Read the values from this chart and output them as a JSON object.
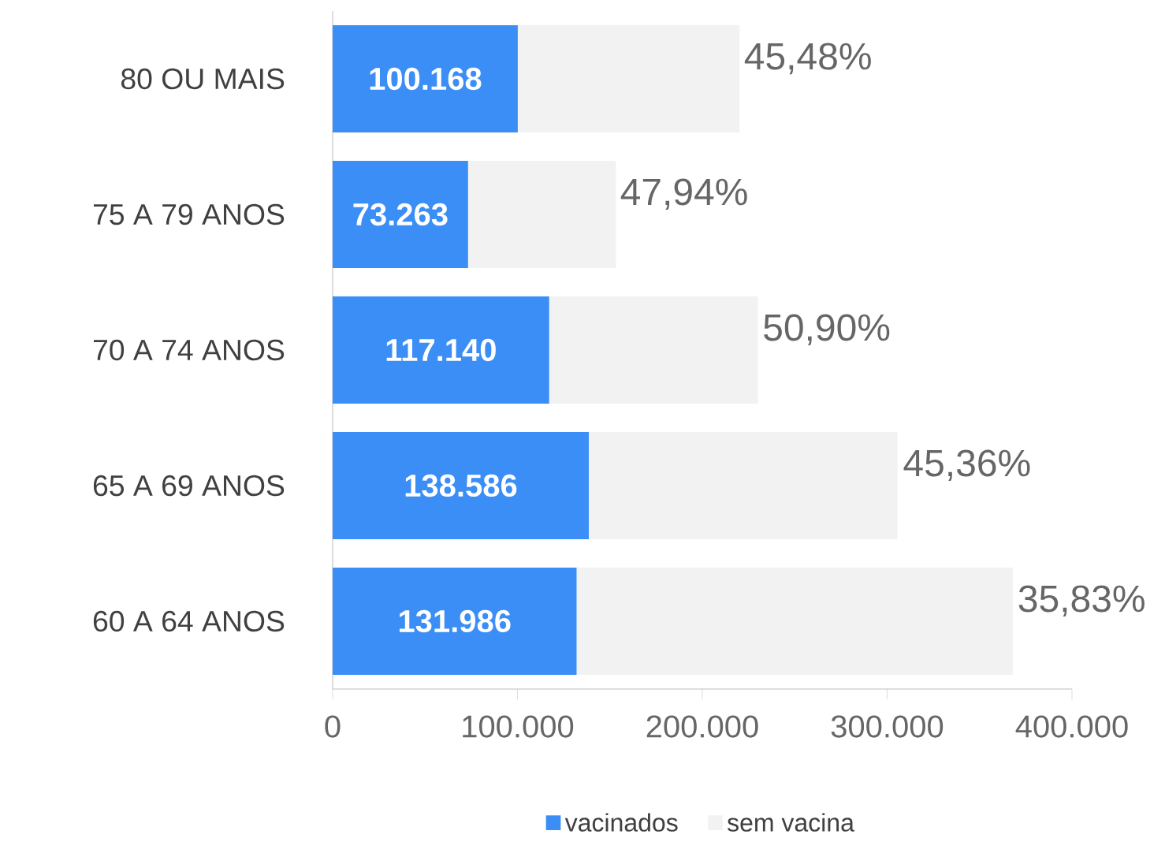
{
  "chart_data": {
    "type": "bar",
    "orientation": "horizontal",
    "stacked": true,
    "categories": [
      "80 OU MAIS",
      "75 A 79 ANOS",
      "70 A 74 ANOS",
      "65 A 69 ANOS",
      "60 A 64 ANOS"
    ],
    "series": [
      {
        "name": "vacinados",
        "color": "#3a8ef6",
        "values": [
          100168,
          73263,
          117140,
          138586,
          131986
        ],
        "value_labels": [
          "100.168",
          "73.263",
          "117.140",
          "138.586",
          "131.986"
        ]
      },
      {
        "name": "sem vacina",
        "color": "#f2f2f2",
        "values": [
          120000,
          80000,
          113000,
          167000,
          236000
        ]
      }
    ],
    "annotations": [
      {
        "text": "45,48%",
        "x": 220000,
        "y": "80 OU MAIS"
      },
      {
        "text": "47,94%",
        "x": 153000,
        "y": "75 A 79 ANOS"
      },
      {
        "text": "50,90%",
        "x": 230000,
        "y": "70 A 74 ANOS"
      },
      {
        "text": "45,36%",
        "x": 306000,
        "y": "65 A 69 ANOS"
      },
      {
        "text": "35,83%",
        "x": 368000,
        "y": "60 A 64 ANOS"
      }
    ],
    "xlim": [
      0,
      400000
    ],
    "xticks": [
      {
        "value": 0,
        "label": "0"
      },
      {
        "value": 100000,
        "label": "100.000"
      },
      {
        "value": 200000,
        "label": "200.000"
      },
      {
        "value": 300000,
        "label": "300.000"
      },
      {
        "value": 400000,
        "label": "400.000"
      }
    ],
    "grid": false,
    "legend": "bottom"
  }
}
